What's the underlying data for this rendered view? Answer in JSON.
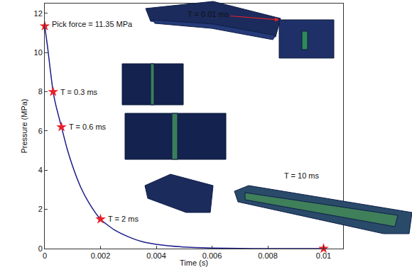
{
  "chart_data": {
    "type": "line",
    "x_label": "Time (s)",
    "y_label": "Pressure (MPa)",
    "x": [
      0,
      0.0001,
      0.0002,
      0.0003,
      0.0004,
      0.0006,
      0.0008,
      0.001,
      0.0013,
      0.0016,
      0.002,
      0.0025,
      0.003,
      0.0035,
      0.004,
      0.005,
      0.006,
      0.007,
      0.008,
      0.009,
      0.01
    ],
    "series": [
      {
        "color": "#1c1c8a",
        "values": [
          11.35,
          10.3,
          9.1,
          8,
          7.3,
          6.2,
          5.1,
          4.2,
          3.1,
          2.3,
          1.5,
          0.95,
          0.6,
          0.35,
          0.22,
          0.08,
          0.03,
          0.01,
          0,
          0,
          0
        ]
      }
    ],
    "markers": {
      "x": [
        0,
        0.0003,
        0.0006,
        0.002,
        0.01
      ],
      "y": [
        11.35,
        8,
        6.2,
        1.5,
        0
      ],
      "labels": [
        "Pick force = 11.35 MPa",
        "T = 0.3 ms",
        "T = 0.6 ms",
        "T = 2 ms",
        null
      ],
      "color": "#e8202a",
      "marker": "star"
    },
    "annotations": [
      "T = 0.01 ms",
      "T = 10 ms"
    ],
    "xlim": [
      0,
      0.0107
    ],
    "ylim": [
      0,
      12.5
    ],
    "xticks": [
      0,
      0.002,
      0.004,
      0.006,
      0.008,
      0.01
    ],
    "yticks": [
      0,
      2,
      4,
      6,
      8,
      10,
      12
    ],
    "grid": false
  }
}
